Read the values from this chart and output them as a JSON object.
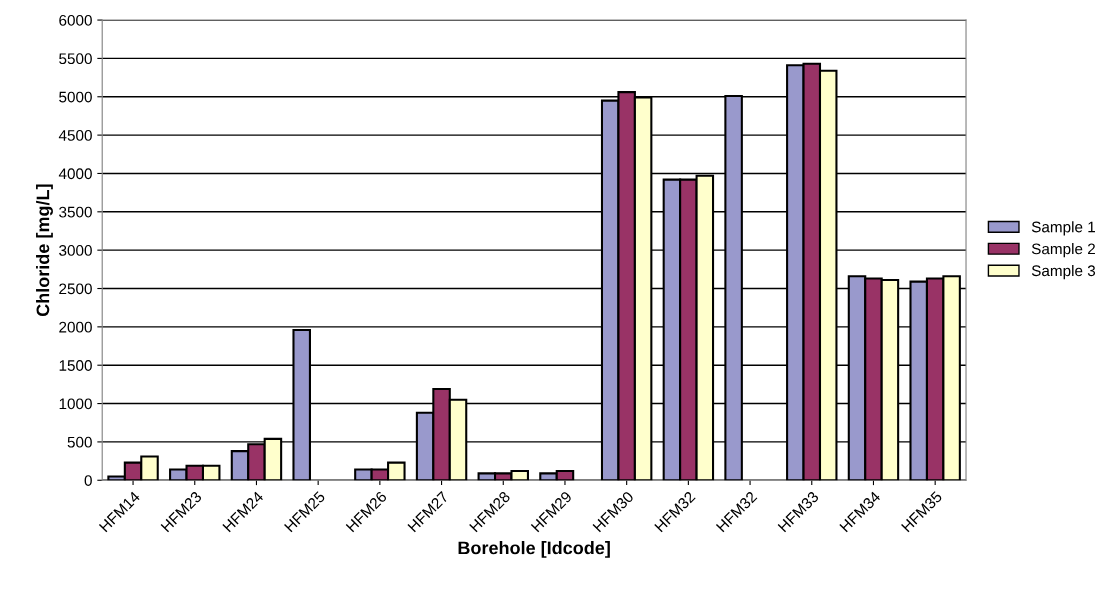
{
  "chart_data": {
    "type": "bar",
    "xlabel": "Borehole [Idcode]",
    "ylabel": "Chloride [mg/L]",
    "categories": [
      "HFM14",
      "HFM23",
      "HFM24",
      "HFM25",
      "HFM26",
      "HFM27",
      "HFM28",
      "HFM29",
      "HFM30",
      "HFM32",
      "HFM32",
      "HFM33",
      "HFM34",
      "HFM35"
    ],
    "series": [
      {
        "name": "Sample 1",
        "color": "#9999cc",
        "values": [
          50,
          140,
          380,
          1960,
          140,
          880,
          90,
          90,
          4950,
          3920,
          5010,
          5410,
          2660,
          2590
        ]
      },
      {
        "name": "Sample 2",
        "color": "#993366",
        "values": [
          230,
          190,
          470,
          null,
          140,
          1190,
          90,
          120,
          5060,
          3920,
          null,
          5430,
          2630,
          2630
        ]
      },
      {
        "name": "Sample 3",
        "color": "#ffffcc",
        "values": [
          310,
          190,
          540,
          null,
          230,
          1050,
          120,
          null,
          4990,
          3970,
          null,
          5340,
          2610,
          2660
        ]
      }
    ],
    "ylim": [
      0,
      6000
    ],
    "yticks": [
      0,
      500,
      1000,
      1500,
      2000,
      2500,
      3000,
      3500,
      4000,
      4500,
      5000,
      5500,
      6000
    ],
    "grid": "y",
    "legend": "right"
  }
}
